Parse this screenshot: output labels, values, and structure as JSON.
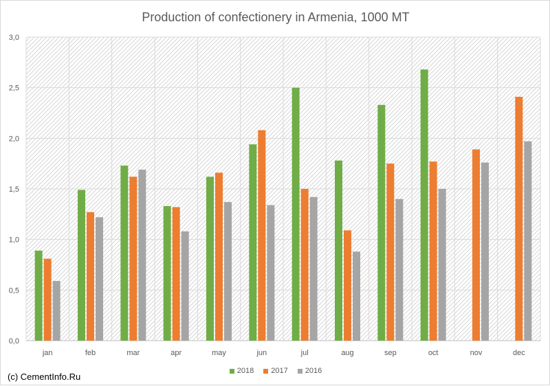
{
  "chart_data": {
    "type": "bar",
    "title": "Production of confectionery in Armenia, 1000 MT",
    "categories": [
      "jan",
      "feb",
      "mar",
      "apr",
      "may",
      "jun",
      "jul",
      "aug",
      "sep",
      "oct",
      "nov",
      "dec"
    ],
    "series": [
      {
        "name": "2018",
        "color": "#70ad47",
        "values": [
          0.89,
          1.49,
          1.73,
          1.33,
          1.62,
          1.94,
          2.5,
          1.78,
          2.33,
          2.68,
          null,
          null
        ]
      },
      {
        "name": "2017",
        "color": "#ed7d31",
        "values": [
          0.81,
          1.27,
          1.62,
          1.32,
          1.66,
          2.08,
          1.5,
          1.09,
          1.75,
          1.77,
          1.89,
          2.41
        ]
      },
      {
        "name": "2016",
        "color": "#a5a5a5",
        "values": [
          0.59,
          1.22,
          1.69,
          1.08,
          1.37,
          1.34,
          1.42,
          0.88,
          1.4,
          1.5,
          1.76,
          1.97
        ]
      }
    ],
    "ylim": [
      0,
      3.0
    ],
    "yticks": [
      "0,0",
      "0,5",
      "1,0",
      "1,5",
      "2,0",
      "2,5",
      "3,0"
    ],
    "xlabel": "",
    "ylabel": "",
    "grid": true,
    "legend_position": "bottom"
  },
  "credit": "(c) CementInfo.Ru"
}
